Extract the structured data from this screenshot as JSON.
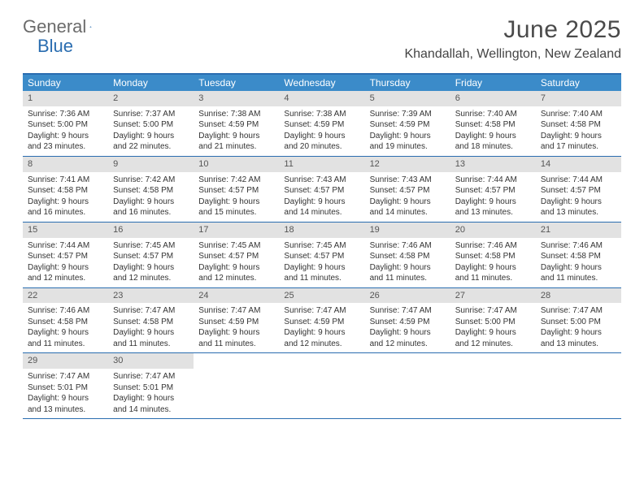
{
  "logo": {
    "text1": "General",
    "text2": "Blue"
  },
  "title": {
    "month": "June 2025",
    "location": "Khandallah, Wellington, New Zealand"
  },
  "colors": {
    "header_bg": "#3b8bc9",
    "border": "#2a6db0",
    "daynum_bg": "#e2e2e2"
  },
  "dow": [
    "Sunday",
    "Monday",
    "Tuesday",
    "Wednesday",
    "Thursday",
    "Friday",
    "Saturday"
  ],
  "weeks": [
    [
      {
        "n": "1",
        "sunrise": "Sunrise: 7:36 AM",
        "sunset": "Sunset: 5:00 PM",
        "daylight": "Daylight: 9 hours and 23 minutes."
      },
      {
        "n": "2",
        "sunrise": "Sunrise: 7:37 AM",
        "sunset": "Sunset: 5:00 PM",
        "daylight": "Daylight: 9 hours and 22 minutes."
      },
      {
        "n": "3",
        "sunrise": "Sunrise: 7:38 AM",
        "sunset": "Sunset: 4:59 PM",
        "daylight": "Daylight: 9 hours and 21 minutes."
      },
      {
        "n": "4",
        "sunrise": "Sunrise: 7:38 AM",
        "sunset": "Sunset: 4:59 PM",
        "daylight": "Daylight: 9 hours and 20 minutes."
      },
      {
        "n": "5",
        "sunrise": "Sunrise: 7:39 AM",
        "sunset": "Sunset: 4:59 PM",
        "daylight": "Daylight: 9 hours and 19 minutes."
      },
      {
        "n": "6",
        "sunrise": "Sunrise: 7:40 AM",
        "sunset": "Sunset: 4:58 PM",
        "daylight": "Daylight: 9 hours and 18 minutes."
      },
      {
        "n": "7",
        "sunrise": "Sunrise: 7:40 AM",
        "sunset": "Sunset: 4:58 PM",
        "daylight": "Daylight: 9 hours and 17 minutes."
      }
    ],
    [
      {
        "n": "8",
        "sunrise": "Sunrise: 7:41 AM",
        "sunset": "Sunset: 4:58 PM",
        "daylight": "Daylight: 9 hours and 16 minutes."
      },
      {
        "n": "9",
        "sunrise": "Sunrise: 7:42 AM",
        "sunset": "Sunset: 4:58 PM",
        "daylight": "Daylight: 9 hours and 16 minutes."
      },
      {
        "n": "10",
        "sunrise": "Sunrise: 7:42 AM",
        "sunset": "Sunset: 4:57 PM",
        "daylight": "Daylight: 9 hours and 15 minutes."
      },
      {
        "n": "11",
        "sunrise": "Sunrise: 7:43 AM",
        "sunset": "Sunset: 4:57 PM",
        "daylight": "Daylight: 9 hours and 14 minutes."
      },
      {
        "n": "12",
        "sunrise": "Sunrise: 7:43 AM",
        "sunset": "Sunset: 4:57 PM",
        "daylight": "Daylight: 9 hours and 14 minutes."
      },
      {
        "n": "13",
        "sunrise": "Sunrise: 7:44 AM",
        "sunset": "Sunset: 4:57 PM",
        "daylight": "Daylight: 9 hours and 13 minutes."
      },
      {
        "n": "14",
        "sunrise": "Sunrise: 7:44 AM",
        "sunset": "Sunset: 4:57 PM",
        "daylight": "Daylight: 9 hours and 13 minutes."
      }
    ],
    [
      {
        "n": "15",
        "sunrise": "Sunrise: 7:44 AM",
        "sunset": "Sunset: 4:57 PM",
        "daylight": "Daylight: 9 hours and 12 minutes."
      },
      {
        "n": "16",
        "sunrise": "Sunrise: 7:45 AM",
        "sunset": "Sunset: 4:57 PM",
        "daylight": "Daylight: 9 hours and 12 minutes."
      },
      {
        "n": "17",
        "sunrise": "Sunrise: 7:45 AM",
        "sunset": "Sunset: 4:57 PM",
        "daylight": "Daylight: 9 hours and 12 minutes."
      },
      {
        "n": "18",
        "sunrise": "Sunrise: 7:45 AM",
        "sunset": "Sunset: 4:57 PM",
        "daylight": "Daylight: 9 hours and 11 minutes."
      },
      {
        "n": "19",
        "sunrise": "Sunrise: 7:46 AM",
        "sunset": "Sunset: 4:58 PM",
        "daylight": "Daylight: 9 hours and 11 minutes."
      },
      {
        "n": "20",
        "sunrise": "Sunrise: 7:46 AM",
        "sunset": "Sunset: 4:58 PM",
        "daylight": "Daylight: 9 hours and 11 minutes."
      },
      {
        "n": "21",
        "sunrise": "Sunrise: 7:46 AM",
        "sunset": "Sunset: 4:58 PM",
        "daylight": "Daylight: 9 hours and 11 minutes."
      }
    ],
    [
      {
        "n": "22",
        "sunrise": "Sunrise: 7:46 AM",
        "sunset": "Sunset: 4:58 PM",
        "daylight": "Daylight: 9 hours and 11 minutes."
      },
      {
        "n": "23",
        "sunrise": "Sunrise: 7:47 AM",
        "sunset": "Sunset: 4:58 PM",
        "daylight": "Daylight: 9 hours and 11 minutes."
      },
      {
        "n": "24",
        "sunrise": "Sunrise: 7:47 AM",
        "sunset": "Sunset: 4:59 PM",
        "daylight": "Daylight: 9 hours and 11 minutes."
      },
      {
        "n": "25",
        "sunrise": "Sunrise: 7:47 AM",
        "sunset": "Sunset: 4:59 PM",
        "daylight": "Daylight: 9 hours and 12 minutes."
      },
      {
        "n": "26",
        "sunrise": "Sunrise: 7:47 AM",
        "sunset": "Sunset: 4:59 PM",
        "daylight": "Daylight: 9 hours and 12 minutes."
      },
      {
        "n": "27",
        "sunrise": "Sunrise: 7:47 AM",
        "sunset": "Sunset: 5:00 PM",
        "daylight": "Daylight: 9 hours and 12 minutes."
      },
      {
        "n": "28",
        "sunrise": "Sunrise: 7:47 AM",
        "sunset": "Sunset: 5:00 PM",
        "daylight": "Daylight: 9 hours and 13 minutes."
      }
    ],
    [
      {
        "n": "29",
        "sunrise": "Sunrise: 7:47 AM",
        "sunset": "Sunset: 5:01 PM",
        "daylight": "Daylight: 9 hours and 13 minutes."
      },
      {
        "n": "30",
        "sunrise": "Sunrise: 7:47 AM",
        "sunset": "Sunset: 5:01 PM",
        "daylight": "Daylight: 9 hours and 14 minutes."
      },
      null,
      null,
      null,
      null,
      null
    ]
  ]
}
